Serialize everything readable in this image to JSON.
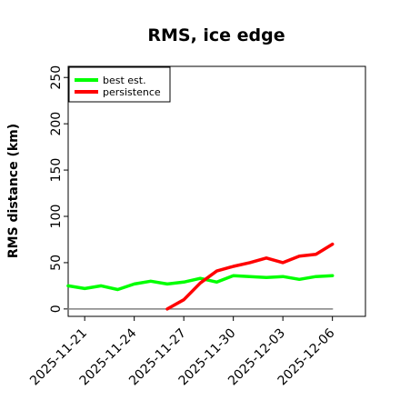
{
  "chart_data": {
    "type": "line",
    "title": "RMS, ice edge",
    "xlabel": "",
    "ylabel": "RMS distance (km)",
    "ylim": [
      -8,
      262
    ],
    "yticks": [
      0,
      50,
      100,
      150,
      200,
      250
    ],
    "xlim": [
      "2025-11-20",
      "2025-12-08"
    ],
    "xticks": [
      "2025-11-21",
      "2025-11-24",
      "2025-11-27",
      "2025-11-30",
      "2025-12-03",
      "2025-12-06"
    ],
    "legend": "top-left",
    "grid": false,
    "series": [
      {
        "name": "best est.",
        "color": "#00ff00",
        "x": [
          "2025-11-20",
          "2025-11-21",
          "2025-11-22",
          "2025-11-23",
          "2025-11-24",
          "2025-11-25",
          "2025-11-26",
          "2025-11-27",
          "2025-11-28",
          "2025-11-29",
          "2025-11-30",
          "2025-12-01",
          "2025-12-02",
          "2025-12-03",
          "2025-12-04",
          "2025-12-05",
          "2025-12-06"
        ],
        "values": [
          25,
          22,
          25,
          21,
          27,
          30,
          27,
          29,
          33,
          29,
          36,
          35,
          34,
          35,
          32,
          35,
          36
        ]
      },
      {
        "name": "persistence",
        "color": "#ff0000",
        "x": [
          "2025-11-26",
          "2025-11-27",
          "2025-11-28",
          "2025-11-29",
          "2025-11-30",
          "2025-12-01",
          "2025-12-02",
          "2025-12-03",
          "2025-12-04",
          "2025-12-05",
          "2025-12-06"
        ],
        "values": [
          0,
          10,
          28,
          41,
          46,
          50,
          55,
          50,
          57,
          59,
          70
        ]
      },
      {
        "name": "",
        "color": "#808080",
        "x": [
          "2025-11-20",
          "2025-12-06"
        ],
        "values": [
          0,
          0
        ]
      }
    ]
  }
}
